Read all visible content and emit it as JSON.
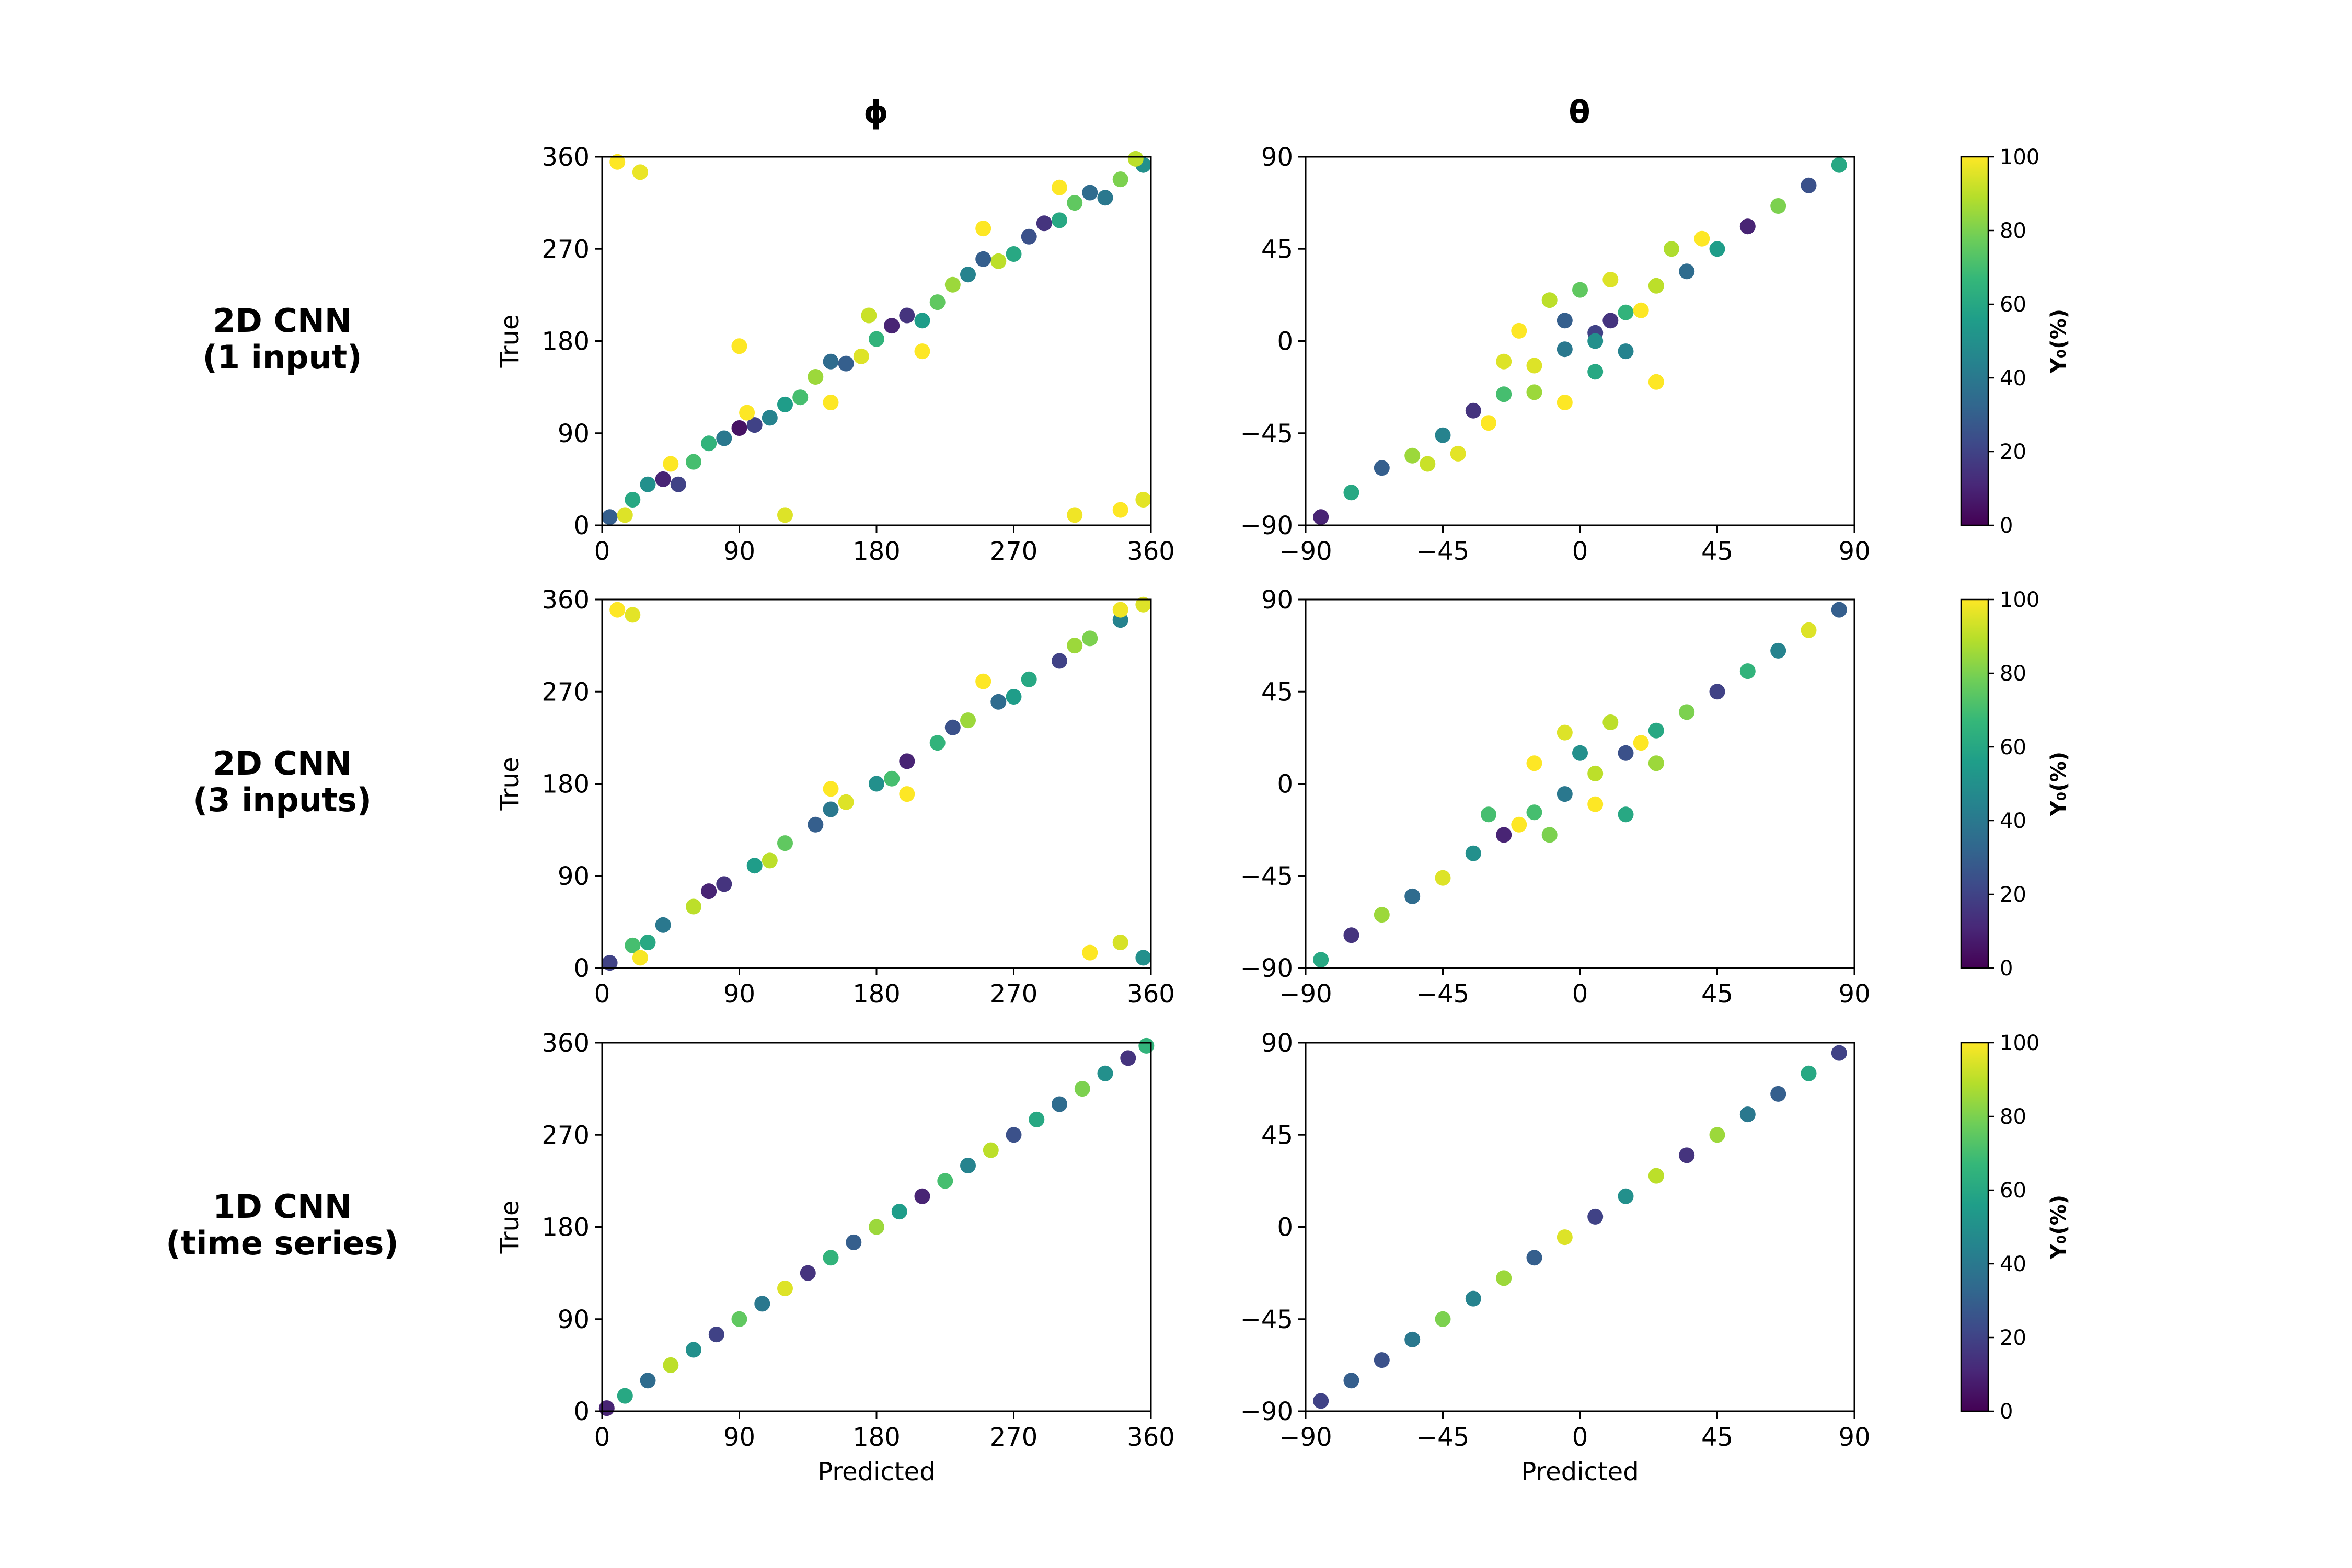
{
  "figure": {
    "column_titles": [
      "ϕ",
      "θ"
    ],
    "row_labels": [
      [
        "2D CNN",
        "(1 input)"
      ],
      [
        "2D CNN",
        "(3 inputs)"
      ],
      [
        "1D CNN",
        "(time series)"
      ]
    ],
    "xlabel": "Predicted",
    "ylabel": "True",
    "colorbar": {
      "label": "Y₀(%)",
      "ticks": [
        0,
        20,
        40,
        60,
        80,
        100
      ],
      "range": [
        0,
        100
      ],
      "colormap": [
        "#440154",
        "#482878",
        "#3e4989",
        "#31688e",
        "#26828e",
        "#1f9e89",
        "#35b779",
        "#6ece58",
        "#b5de2b",
        "#fde725"
      ]
    }
  },
  "chart_data": [
    {
      "type": "scatter",
      "panel": "2D CNN (1 input) – ϕ",
      "xlim": [
        0,
        360
      ],
      "ylim": [
        0,
        360
      ],
      "xticks": [
        0,
        90,
        180,
        270,
        360
      ],
      "yticks": [
        0,
        90,
        180,
        270,
        360
      ],
      "xlabel": "",
      "ylabel": "True",
      "points": [
        [
          5,
          8,
          30
        ],
        [
          20,
          25,
          60
        ],
        [
          40,
          45,
          10
        ],
        [
          60,
          62,
          70
        ],
        [
          80,
          85,
          40
        ],
        [
          100,
          98,
          20
        ],
        [
          120,
          118,
          55
        ],
        [
          140,
          145,
          85
        ],
        [
          160,
          158,
          30
        ],
        [
          180,
          182,
          65
        ],
        [
          200,
          205,
          15
        ],
        [
          220,
          218,
          75
        ],
        [
          240,
          245,
          45
        ],
        [
          260,
          258,
          90
        ],
        [
          280,
          282,
          25
        ],
        [
          300,
          298,
          60
        ],
        [
          320,
          325,
          35
        ],
        [
          340,
          338,
          80
        ],
        [
          355,
          352,
          50
        ],
        [
          15,
          10,
          95
        ],
        [
          30,
          40,
          50
        ],
        [
          50,
          40,
          20
        ],
        [
          70,
          80,
          65
        ],
        [
          90,
          95,
          5
        ],
        [
          110,
          105,
          45
        ],
        [
          130,
          125,
          70
        ],
        [
          150,
          160,
          35
        ],
        [
          170,
          165,
          95
        ],
        [
          190,
          195,
          10
        ],
        [
          210,
          200,
          55
        ],
        [
          230,
          235,
          85
        ],
        [
          250,
          260,
          30
        ],
        [
          270,
          265,
          60
        ],
        [
          290,
          295,
          15
        ],
        [
          310,
          315,
          75
        ],
        [
          330,
          320,
          40
        ],
        [
          350,
          358,
          90
        ],
        [
          45,
          60,
          100
        ],
        [
          95,
          110,
          100
        ],
        [
          150,
          120,
          100
        ],
        [
          210,
          170,
          100
        ],
        [
          250,
          290,
          100
        ],
        [
          300,
          330,
          100
        ],
        [
          310,
          10,
          98
        ],
        [
          340,
          15,
          100
        ],
        [
          355,
          25,
          96
        ],
        [
          10,
          355,
          100
        ],
        [
          25,
          345,
          97
        ],
        [
          120,
          10,
          95
        ],
        [
          90,
          175,
          100
        ],
        [
          175,
          205,
          92
        ]
      ]
    },
    {
      "type": "scatter",
      "panel": "2D CNN (1 input) – θ",
      "xlim": [
        -90,
        90
      ],
      "ylim": [
        -90,
        90
      ],
      "xticks": [
        -90,
        -45,
        0,
        45,
        90
      ],
      "yticks": [
        -90,
        -45,
        0,
        45,
        90
      ],
      "xlabel": "",
      "ylabel": "",
      "points": [
        [
          -85,
          -86,
          10
        ],
        [
          -75,
          -74,
          60
        ],
        [
          -65,
          -62,
          30
        ],
        [
          -55,
          -56,
          85
        ],
        [
          -45,
          -46,
          45
        ],
        [
          -35,
          -34,
          15
        ],
        [
          -25,
          -26,
          70
        ],
        [
          -15,
          -12,
          95
        ],
        [
          -5,
          -4,
          40
        ],
        [
          5,
          4,
          20
        ],
        [
          15,
          14,
          65
        ],
        [
          25,
          27,
          90
        ],
        [
          35,
          34,
          35
        ],
        [
          45,
          45,
          55
        ],
        [
          55,
          56,
          10
        ],
        [
          65,
          66,
          80
        ],
        [
          75,
          76,
          25
        ],
        [
          85,
          86,
          60
        ],
        [
          -20,
          5,
          100
        ],
        [
          -10,
          20,
          90
        ],
        [
          0,
          25,
          75
        ],
        [
          10,
          30,
          95
        ],
        [
          -15,
          -25,
          85
        ],
        [
          -5,
          -30,
          100
        ],
        [
          5,
          -15,
          60
        ],
        [
          15,
          -5,
          45
        ],
        [
          20,
          15,
          100
        ],
        [
          -25,
          -10,
          95
        ],
        [
          -30,
          -40,
          100
        ],
        [
          30,
          45,
          88
        ],
        [
          40,
          50,
          100
        ],
        [
          -50,
          -60,
          92
        ],
        [
          -40,
          -55,
          96
        ],
        [
          25,
          -20,
          100
        ],
        [
          -5,
          10,
          30
        ],
        [
          5,
          0,
          50
        ],
        [
          10,
          10,
          15
        ]
      ]
    },
    {
      "type": "scatter",
      "panel": "2D CNN (3 inputs) – ϕ",
      "xlim": [
        0,
        360
      ],
      "ylim": [
        0,
        360
      ],
      "xticks": [
        0,
        90,
        180,
        270,
        360
      ],
      "yticks": [
        0,
        90,
        180,
        270,
        360
      ],
      "xlabel": "",
      "ylabel": "True",
      "points": [
        [
          5,
          5,
          20
        ],
        [
          20,
          22,
          70
        ],
        [
          40,
          42,
          40
        ],
        [
          60,
          60,
          90
        ],
        [
          80,
          82,
          15
        ],
        [
          100,
          100,
          55
        ],
        [
          120,
          122,
          75
        ],
        [
          140,
          140,
          30
        ],
        [
          160,
          162,
          95
        ],
        [
          180,
          180,
          50
        ],
        [
          200,
          202,
          10
        ],
        [
          220,
          220,
          65
        ],
        [
          240,
          242,
          85
        ],
        [
          260,
          260,
          35
        ],
        [
          280,
          282,
          60
        ],
        [
          300,
          300,
          20
        ],
        [
          320,
          322,
          80
        ],
        [
          340,
          340,
          45
        ],
        [
          355,
          355,
          95
        ],
        [
          30,
          25,
          60
        ],
        [
          70,
          75,
          10
        ],
        [
          110,
          105,
          90
        ],
        [
          150,
          155,
          40
        ],
        [
          190,
          185,
          70
        ],
        [
          230,
          235,
          25
        ],
        [
          270,
          265,
          55
        ],
        [
          310,
          315,
          85
        ],
        [
          150,
          175,
          100
        ],
        [
          200,
          170,
          100
        ],
        [
          250,
          280,
          100
        ],
        [
          340,
          350,
          98
        ],
        [
          10,
          350,
          100
        ],
        [
          20,
          345,
          96
        ],
        [
          320,
          15,
          100
        ],
        [
          340,
          25,
          94
        ],
        [
          355,
          10,
          50
        ],
        [
          25,
          10,
          99
        ]
      ]
    },
    {
      "type": "scatter",
      "panel": "2D CNN (3 inputs) – θ",
      "xlim": [
        -90,
        90
      ],
      "ylim": [
        -90,
        90
      ],
      "xticks": [
        -90,
        -45,
        0,
        45,
        90
      ],
      "yticks": [
        -90,
        -45,
        0,
        45,
        90
      ],
      "xlabel": "",
      "ylabel": "",
      "points": [
        [
          -85,
          -86,
          60
        ],
        [
          -75,
          -74,
          15
        ],
        [
          -65,
          -64,
          85
        ],
        [
          -55,
          -55,
          35
        ],
        [
          -45,
          -46,
          95
        ],
        [
          -35,
          -34,
          50
        ],
        [
          -25,
          -25,
          10
        ],
        [
          -15,
          -14,
          70
        ],
        [
          -5,
          -5,
          40
        ],
        [
          5,
          5,
          90
        ],
        [
          15,
          15,
          25
        ],
        [
          25,
          26,
          60
        ],
        [
          35,
          35,
          80
        ],
        [
          45,
          45,
          20
        ],
        [
          55,
          55,
          65
        ],
        [
          65,
          65,
          45
        ],
        [
          75,
          75,
          95
        ],
        [
          85,
          85,
          30
        ],
        [
          -15,
          10,
          100
        ],
        [
          -5,
          25,
          95
        ],
        [
          10,
          30,
          90
        ],
        [
          20,
          20,
          100
        ],
        [
          -20,
          -20,
          100
        ],
        [
          -10,
          -25,
          80
        ],
        [
          5,
          -10,
          100
        ],
        [
          25,
          10,
          85
        ],
        [
          15,
          -15,
          60
        ],
        [
          -30,
          -15,
          70
        ],
        [
          0,
          15,
          50
        ]
      ]
    },
    {
      "type": "scatter",
      "panel": "1D CNN (time series) – ϕ",
      "xlim": [
        0,
        360
      ],
      "ylim": [
        0,
        360
      ],
      "xticks": [
        0,
        90,
        180,
        270,
        360
      ],
      "yticks": [
        0,
        90,
        180,
        270,
        360
      ],
      "xlabel": "Predicted",
      "ylabel": "True",
      "points": [
        [
          3,
          3,
          10
        ],
        [
          15,
          15,
          60
        ],
        [
          30,
          30,
          35
        ],
        [
          45,
          45,
          90
        ],
        [
          60,
          60,
          50
        ],
        [
          75,
          75,
          20
        ],
        [
          90,
          90,
          75
        ],
        [
          105,
          105,
          40
        ],
        [
          120,
          120,
          95
        ],
        [
          135,
          135,
          15
        ],
        [
          150,
          150,
          65
        ],
        [
          165,
          165,
          30
        ],
        [
          180,
          180,
          85
        ],
        [
          195,
          195,
          55
        ],
        [
          210,
          210,
          10
        ],
        [
          225,
          225,
          70
        ],
        [
          240,
          240,
          45
        ],
        [
          255,
          255,
          90
        ],
        [
          270,
          270,
          25
        ],
        [
          285,
          285,
          60
        ],
        [
          300,
          300,
          35
        ],
        [
          315,
          315,
          80
        ],
        [
          330,
          330,
          50
        ],
        [
          345,
          345,
          15
        ],
        [
          357,
          357,
          65
        ]
      ]
    },
    {
      "type": "scatter",
      "panel": "1D CNN (time series) – θ",
      "xlim": [
        -90,
        90
      ],
      "ylim": [
        -90,
        90
      ],
      "xticks": [
        -90,
        -45,
        0,
        45,
        90
      ],
      "yticks": [
        -90,
        -45,
        0,
        45,
        90
      ],
      "xlabel": "Predicted",
      "ylabel": "",
      "points": [
        [
          -85,
          -85,
          20
        ],
        [
          -75,
          -75,
          30
        ],
        [
          -65,
          -65,
          25
        ],
        [
          -55,
          -55,
          40
        ],
        [
          -45,
          -45,
          80
        ],
        [
          -35,
          -35,
          45
        ],
        [
          -25,
          -25,
          85
        ],
        [
          -15,
          -15,
          30
        ],
        [
          -5,
          -5,
          95
        ],
        [
          5,
          5,
          20
        ],
        [
          15,
          15,
          50
        ],
        [
          25,
          25,
          90
        ],
        [
          35,
          35,
          15
        ],
        [
          45,
          45,
          85
        ],
        [
          55,
          55,
          40
        ],
        [
          65,
          65,
          30
        ],
        [
          75,
          75,
          60
        ],
        [
          85,
          85,
          20
        ]
      ]
    }
  ]
}
